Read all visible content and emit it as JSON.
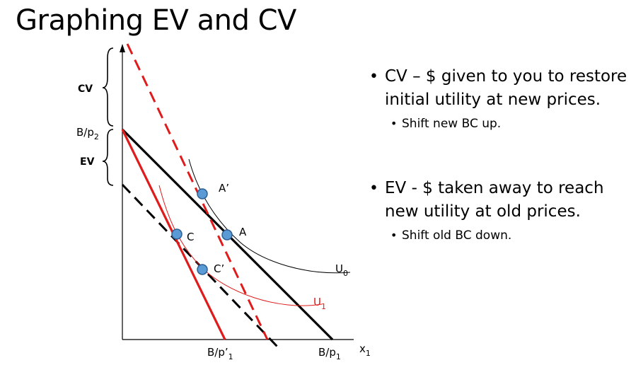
{
  "slide": {
    "title": "Graphing EV and CV",
    "bullets": [
      {
        "text": "CV – $ given to you to restore initial utility at new prices.",
        "sub": "Shift new BC up."
      },
      {
        "text": "EV - $ taken away to reach new utility at old prices.",
        "sub": "Shift old BC down."
      }
    ]
  },
  "diagram": {
    "y_intercept_label": "B/p",
    "y_intercept_sub": "2",
    "x_new_label": "B/p’",
    "x_new_sub": "1",
    "x_old_label": "B/p",
    "x_old_sub": "1",
    "x_axis_label": "x",
    "x_axis_sub": "1",
    "brace_cv": "CV",
    "brace_ev": "EV",
    "point_a": "A",
    "point_a_prime": "A’",
    "point_c": "C",
    "point_c_prime": "C’",
    "curve_u0": "U",
    "curve_u0_sub": "0",
    "curve_u1": "U",
    "curve_u1_sub": "1",
    "colors": {
      "red": "#e01b1b",
      "black": "#000000",
      "point_fill": "#5b9bd5",
      "point_stroke": "#2e5f94"
    }
  }
}
